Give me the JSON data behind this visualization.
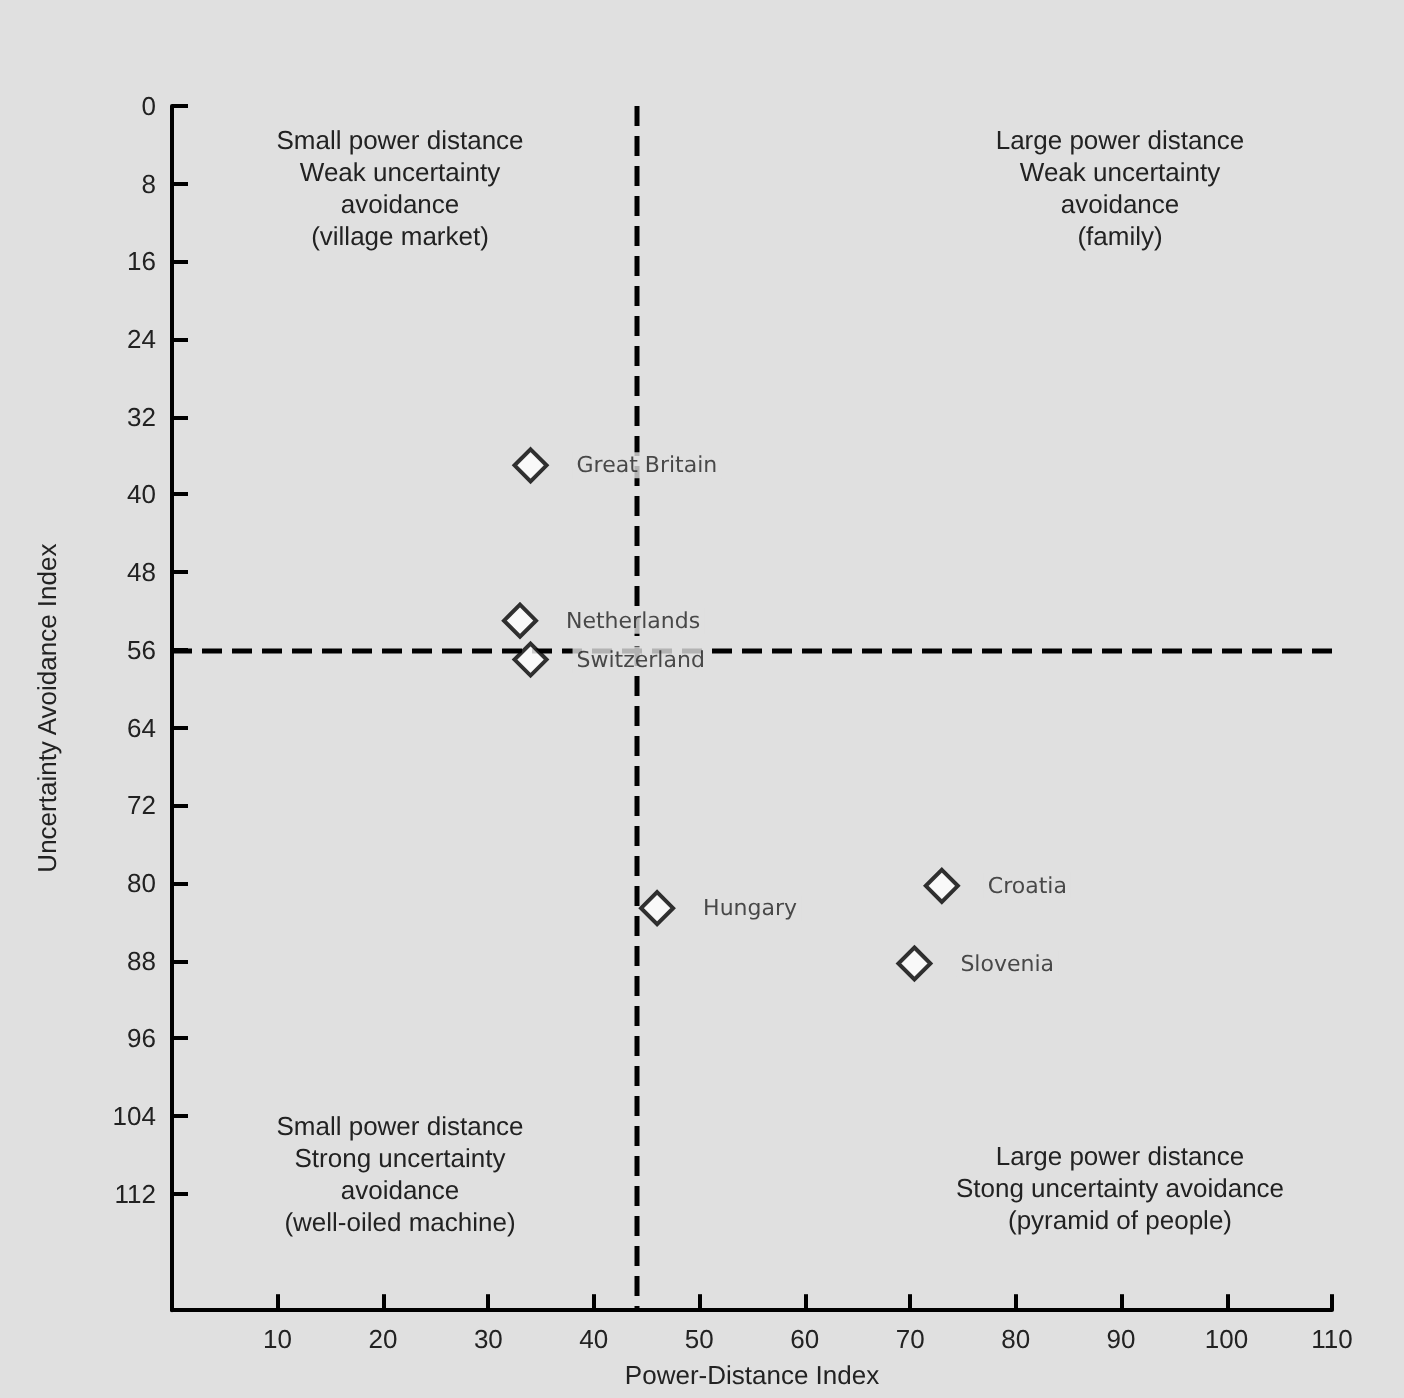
{
  "chart_data": {
    "type": "scatter",
    "xlabel": "Power-Distance Index",
    "ylabel": "Uncertainty Avoidance Index",
    "xlim": [
      0,
      110
    ],
    "xticks": [
      10,
      20,
      30,
      40,
      50,
      60,
      70,
      80,
      90,
      100,
      110
    ],
    "ylim": [
      124,
      0
    ],
    "yticks": [
      0,
      8,
      16,
      24,
      32,
      40,
      48,
      56,
      64,
      72,
      80,
      88,
      96,
      104,
      112
    ],
    "series": [
      {
        "name": "Great Britain",
        "color": "#000000",
        "x": [
          34
        ],
        "values": [
          37
        ]
      },
      {
        "name": "Netherlands",
        "color": "#000000",
        "x": [
          33
        ],
        "values": [
          53
        ]
      },
      {
        "name": "Switzerland",
        "color": "#000000",
        "x": [
          34
        ],
        "values": [
          57
        ]
      },
      {
        "name": "Hungary",
        "color": "#000000",
        "x": [
          46
        ],
        "values": [
          82.6
        ]
      },
      {
        "name": "Croatia",
        "color": "#000000",
        "x": [
          73
        ],
        "values": [
          80.3
        ]
      },
      {
        "name": "Slovenia",
        "color": "#000000",
        "x": [
          70.4
        ],
        "values": [
          88.3
        ]
      }
    ],
    "ref_lines": [
      {
        "axis": "x",
        "value": 44,
        "line_style": "dashed",
        "color": "#000000"
      },
      {
        "axis": "y",
        "value": 56,
        "line_style": "dashed",
        "color": "#000000"
      }
    ],
    "annotations": [
      "Small power distance\nWeak uncertainty\navoidance\n(village market)",
      "Large power distance\nWeak uncertainty\navoidance\n(family)",
      "Small power distance\nStrong uncertainty\navoidance\n(well-oiled machine)",
      "Large power distance\nStong uncertainty avoidance\n(pyramid of people)"
    ],
    "marker": "diamond",
    "legend": false,
    "grid": false
  }
}
